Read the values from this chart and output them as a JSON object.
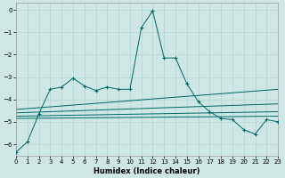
{
  "xlabel": "Humidex (Indice chaleur)",
  "xlim": [
    0,
    23
  ],
  "ylim": [
    -6.5,
    0.3
  ],
  "bg_color": "#cde8e4",
  "line_color": "#006666",
  "grid_color": "#b0d8d4",
  "x_ticks": [
    0,
    1,
    2,
    3,
    4,
    5,
    6,
    7,
    8,
    9,
    10,
    11,
    12,
    13,
    14,
    15,
    16,
    17,
    18,
    19,
    20,
    21,
    22,
    23
  ],
  "y_ticks": [
    0,
    -1,
    -2,
    -3,
    -4,
    -5,
    -6
  ],
  "main_line_y": [
    -6.35,
    -5.9,
    -4.65,
    -3.55,
    -3.45,
    -3.05,
    -3.4,
    -3.6,
    -3.45,
    -3.55,
    -3.55,
    -0.8,
    -0.05,
    -2.15,
    -2.15,
    -3.3,
    -4.1,
    -4.55,
    -4.85,
    -4.9,
    -5.35,
    -5.55,
    -4.9,
    -5.0
  ],
  "reg_lines": [
    {
      "x0": 0,
      "y0": -4.45,
      "x1": 23,
      "y1": -3.55
    },
    {
      "x0": 0,
      "y0": -4.6,
      "x1": 23,
      "y1": -4.2
    },
    {
      "x0": 0,
      "y0": -4.75,
      "x1": 23,
      "y1": -4.55
    },
    {
      "x0": 0,
      "y0": -4.85,
      "x1": 23,
      "y1": -4.75
    }
  ]
}
